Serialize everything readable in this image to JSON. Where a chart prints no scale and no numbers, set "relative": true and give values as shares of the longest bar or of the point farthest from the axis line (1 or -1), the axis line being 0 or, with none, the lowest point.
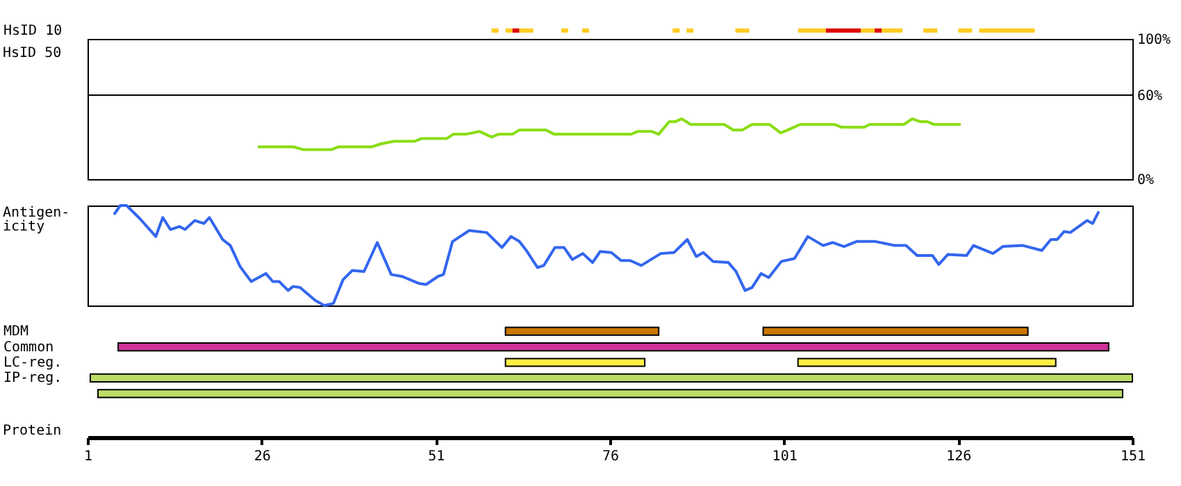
{
  "chart_data": [
    {
      "type": "bar",
      "orientation": "horizontal",
      "categories": [
        "HsID 10"
      ],
      "xlim": [
        1,
        151
      ],
      "tick_labels": "y",
      "series": [
        {
          "color": "#ffcc22",
          "base": [
            59
          ],
          "values": [
            1
          ]
        },
        {
          "color": "#ffcc22",
          "base": [
            61
          ],
          "values": [
            1
          ]
        },
        {
          "color": "#dd0000",
          "base": [
            62
          ],
          "values": [
            1
          ]
        },
        {
          "color": "#ffcc22",
          "base": [
            63
          ],
          "values": [
            2
          ]
        },
        {
          "color": "#ffcc22",
          "base": [
            69
          ],
          "values": [
            1
          ]
        },
        {
          "color": "#ffcc22",
          "base": [
            72
          ],
          "values": [
            1
          ]
        },
        {
          "color": "#ffcc22",
          "base": [
            85
          ],
          "values": [
            1
          ]
        },
        {
          "color": "#ffcc22",
          "base": [
            87
          ],
          "values": [
            1
          ]
        },
        {
          "color": "#ffcc22",
          "base": [
            94
          ],
          "values": [
            2
          ]
        },
        {
          "color": "#ffcc22",
          "base": [
            103
          ],
          "values": [
            4
          ]
        },
        {
          "color": "#dd0000",
          "base": [
            107
          ],
          "values": [
            5
          ]
        },
        {
          "color": "#ffcc22",
          "base": [
            112
          ],
          "values": [
            2
          ]
        },
        {
          "color": "#dd0000",
          "base": [
            114
          ],
          "values": [
            1
          ]
        },
        {
          "color": "#ffcc22",
          "base": [
            115
          ],
          "values": [
            3
          ]
        },
        {
          "color": "#ffcc22",
          "base": [
            121
          ],
          "values": [
            2
          ]
        },
        {
          "color": "#ffcc22",
          "base": [
            126
          ],
          "values": [
            2
          ]
        },
        {
          "color": "#ffcc22",
          "base": [
            129
          ],
          "values": [
            8
          ]
        }
      ]
    },
    {
      "type": "line",
      "ylabel": "HsID 50",
      "xlim": [
        1,
        151
      ],
      "ylim": [
        0,
        100
      ],
      "yticks": [
        {
          "value": 0,
          "label": "0%"
        },
        {
          "value": 60,
          "label": "60%"
        },
        {
          "value": 100,
          "label": "100%"
        }
      ],
      "grid": "y",
      "tick_labels": "y",
      "x": [
        25.6,
        30.6,
        32,
        36,
        37,
        41.8,
        43,
        45,
        48,
        49,
        52.6,
        53.5,
        55.3,
        57.3,
        59,
        60,
        62,
        63,
        66.8,
        68,
        79,
        80,
        82,
        83,
        84.5,
        85.4,
        86.3,
        87.6,
        92.4,
        93.7,
        95,
        96.4,
        98.9,
        100.5,
        101.5,
        103.3,
        108.2,
        109.3,
        112.5,
        113.3,
        118.2,
        119.4,
        120.5,
        121.5,
        122.5,
        126.2
      ],
      "series": [
        {
          "color": "#88dd11",
          "values": [
            23,
            23,
            21,
            21,
            23,
            23,
            25,
            27,
            27,
            29,
            29,
            32,
            32,
            34,
            30,
            32,
            32,
            35,
            35,
            32,
            32,
            34,
            34,
            32,
            41,
            41,
            43,
            39,
            39,
            35,
            35,
            39,
            39,
            33,
            35,
            39,
            39,
            37,
            37,
            39,
            39,
            43,
            41,
            41,
            39,
            39
          ]
        }
      ]
    },
    {
      "type": "line",
      "ylabel": "Antigen-\nicity",
      "relative": true,
      "xlim": [
        1,
        151
      ],
      "tick_labels": false,
      "x": [
        4.9,
        5.7,
        6.6,
        8.5,
        10.8,
        11.8,
        12.9,
        14.2,
        15,
        16.4,
        17.7,
        18.5,
        20.4,
        21.5,
        22.9,
        24.5,
        26.6,
        27.6,
        28.5,
        29.8,
        30.5,
        31.5,
        33.7,
        35,
        36.3,
        37.7,
        39,
        40.7,
        42.6,
        44.6,
        46.2,
        48.6,
        49.6,
        51.3,
        52.1,
        53.4,
        55.8,
        58.3,
        60.5,
        61.8,
        63,
        64,
        65.6,
        66.5,
        68.1,
        69.4,
        70.6,
        72.1,
        73.5,
        74.6,
        76.2,
        77.6,
        78.9,
        80.5,
        83.3,
        85.2,
        87.1,
        88.4,
        89.4,
        90.8,
        93,
        94.1,
        95.4,
        96.4,
        97.7,
        98.8,
        100.6,
        102.5,
        104.4,
        106.6,
        108,
        109.6,
        111.4,
        114.1,
        116.9,
        118.5,
        120.1,
        122.3,
        123.2,
        124.5,
        127.2,
        128.2,
        131,
        132.4,
        135.3,
        138,
        139.3,
        140.2,
        141.2,
        142.1,
        144.5,
        145.3,
        146.1
      ],
      "series": [
        {
          "color": "#3366ee",
          "values": [
            0.92,
            1,
            1,
            0.87,
            0.69,
            0.88,
            0.76,
            0.79,
            0.76,
            0.85,
            0.82,
            0.88,
            0.66,
            0.6,
            0.39,
            0.24,
            0.32,
            0.24,
            0.24,
            0.15,
            0.19,
            0.18,
            0.05,
            0,
            0.02,
            0.26,
            0.35,
            0.34,
            0.63,
            0.31,
            0.29,
            0.22,
            0.21,
            0.29,
            0.31,
            0.64,
            0.75,
            0.73,
            0.58,
            0.69,
            0.64,
            0.55,
            0.38,
            0.4,
            0.58,
            0.58,
            0.46,
            0.52,
            0.43,
            0.54,
            0.53,
            0.45,
            0.45,
            0.4,
            0.52,
            0.53,
            0.66,
            0.49,
            0.53,
            0.44,
            0.43,
            0.34,
            0.15,
            0.18,
            0.32,
            0.28,
            0.44,
            0.47,
            0.69,
            0.6,
            0.63,
            0.59,
            0.64,
            0.64,
            0.6,
            0.6,
            0.5,
            0.5,
            0.41,
            0.51,
            0.5,
            0.6,
            0.52,
            0.59,
            0.6,
            0.55,
            0.66,
            0.66,
            0.74,
            0.73,
            0.85,
            0.82,
            0.93
          ]
        }
      ]
    },
    {
      "type": "bar",
      "orientation": "horizontal",
      "categories": [
        "MDM",
        "Common",
        "LC-reg.",
        "IP-reg.",
        null
      ],
      "xlabel": "Protein",
      "xlim": [
        1,
        151
      ],
      "xticks": [
        1,
        26,
        51,
        76,
        101,
        126,
        151
      ],
      "series": [
        {
          "colors": [
            "#cc7700",
            "#cc3399",
            "#ffee44",
            "#bbdd66",
            "#bbdd66"
          ],
          "base": [
            61,
            5.4,
            61,
            1.4,
            2.5
          ],
          "values": [
            22,
            142.2,
            20,
            149.6,
            147.1
          ]
        },
        {
          "colors": [
            "#cc7700",
            null,
            "#ffee44",
            null,
            null
          ],
          "base": [
            98,
            null,
            103,
            null,
            null
          ],
          "values": [
            38,
            null,
            37,
            null,
            null
          ]
        }
      ]
    }
  ]
}
